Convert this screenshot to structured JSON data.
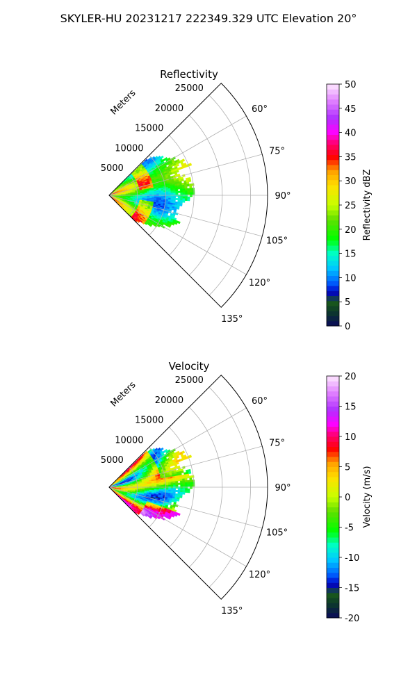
{
  "figure": {
    "suptitle": "SKYLER-HU  20231217  222349.329 UTC Elevation 20°"
  },
  "chart_data": [
    {
      "type": "heatmap",
      "projection": "polar-sector",
      "title": "Reflectivity",
      "radial_label": "Meters",
      "radial_ticks": [
        5000,
        10000,
        15000,
        20000,
        25000
      ],
      "radial_tick_labels": [
        "5000",
        "10000",
        "15000",
        "20000",
        "25000"
      ],
      "rmax": 28000,
      "angular_ticks": [
        60,
        75,
        90,
        105,
        120,
        135
      ],
      "angular_tick_labels": [
        "60°",
        "75°",
        "90°",
        "105°",
        "120°",
        "135°"
      ],
      "sector_deg": [
        45,
        135
      ],
      "grid": true,
      "colorbar": {
        "label": "Reflectivity dBZ",
        "min": 0,
        "max": 50,
        "ticks": [
          0,
          5,
          10,
          15,
          20,
          25,
          30,
          35,
          40,
          45,
          50
        ],
        "tick_labels": [
          "0",
          "5",
          "10",
          "15",
          "20",
          "25",
          "30",
          "35",
          "40",
          "45",
          "50"
        ]
      },
      "field_description": "mostly 15-28 dBZ, 30-38 dBZ near 5000-8000 m",
      "colors": {
        "stops": [
          [
            0.0,
            "#0a0a5a"
          ],
          [
            0.06,
            "#0c3a2a"
          ],
          [
            0.1,
            "#1a5a1a"
          ],
          [
            0.14,
            "#0000c8"
          ],
          [
            0.18,
            "#0060ff"
          ],
          [
            0.24,
            "#00c8ff"
          ],
          [
            0.3,
            "#00ffc8"
          ],
          [
            0.36,
            "#00ff00"
          ],
          [
            0.44,
            "#60e000"
          ],
          [
            0.5,
            "#c8ff00"
          ],
          [
            0.58,
            "#ffe000"
          ],
          [
            0.64,
            "#ffa000"
          ],
          [
            0.7,
            "#ff0000"
          ],
          [
            0.76,
            "#ff0080"
          ],
          [
            0.8,
            "#ff00ff"
          ],
          [
            0.86,
            "#b030ff"
          ],
          [
            0.93,
            "#e080ff"
          ],
          [
            1.0,
            "#ffe8ff"
          ]
        ]
      }
    },
    {
      "type": "heatmap",
      "projection": "polar-sector",
      "title": "Velocity",
      "radial_label": "Meters",
      "radial_ticks": [
        5000,
        10000,
        15000,
        20000,
        25000
      ],
      "radial_tick_labels": [
        "5000",
        "10000",
        "15000",
        "20000",
        "25000"
      ],
      "rmax": 28000,
      "angular_ticks": [
        60,
        75,
        90,
        105,
        120,
        135
      ],
      "angular_tick_labels": [
        "60°",
        "75°",
        "90°",
        "105°",
        "120°",
        "135°"
      ],
      "sector_deg": [
        45,
        135
      ],
      "grid": true,
      "colorbar": {
        "label": "Velocity (m/s)",
        "min": -20,
        "max": 20,
        "ticks": [
          -20,
          -15,
          -10,
          -5,
          0,
          5,
          10,
          15,
          20
        ],
        "tick_labels": [
          "-20",
          "-15",
          "-10",
          "-5",
          "0",
          "5",
          "10",
          "15",
          "20"
        ]
      },
      "field_description": "folded velocities, -12 to 18 m/s, alternating bands",
      "colors": {
        "stops": [
          [
            0.0,
            "#0a0a5a"
          ],
          [
            0.06,
            "#0c3a2a"
          ],
          [
            0.1,
            "#1a5a1a"
          ],
          [
            0.14,
            "#0000c8"
          ],
          [
            0.18,
            "#0060ff"
          ],
          [
            0.24,
            "#00c8ff"
          ],
          [
            0.3,
            "#00ffc8"
          ],
          [
            0.36,
            "#00ff00"
          ],
          [
            0.44,
            "#60e000"
          ],
          [
            0.5,
            "#c8ff00"
          ],
          [
            0.58,
            "#ffe000"
          ],
          [
            0.64,
            "#ffa000"
          ],
          [
            0.7,
            "#ff0000"
          ],
          [
            0.76,
            "#ff0080"
          ],
          [
            0.8,
            "#ff00ff"
          ],
          [
            0.86,
            "#b030ff"
          ],
          [
            0.93,
            "#e080ff"
          ],
          [
            1.0,
            "#ffe8ff"
          ]
        ]
      }
    }
  ]
}
